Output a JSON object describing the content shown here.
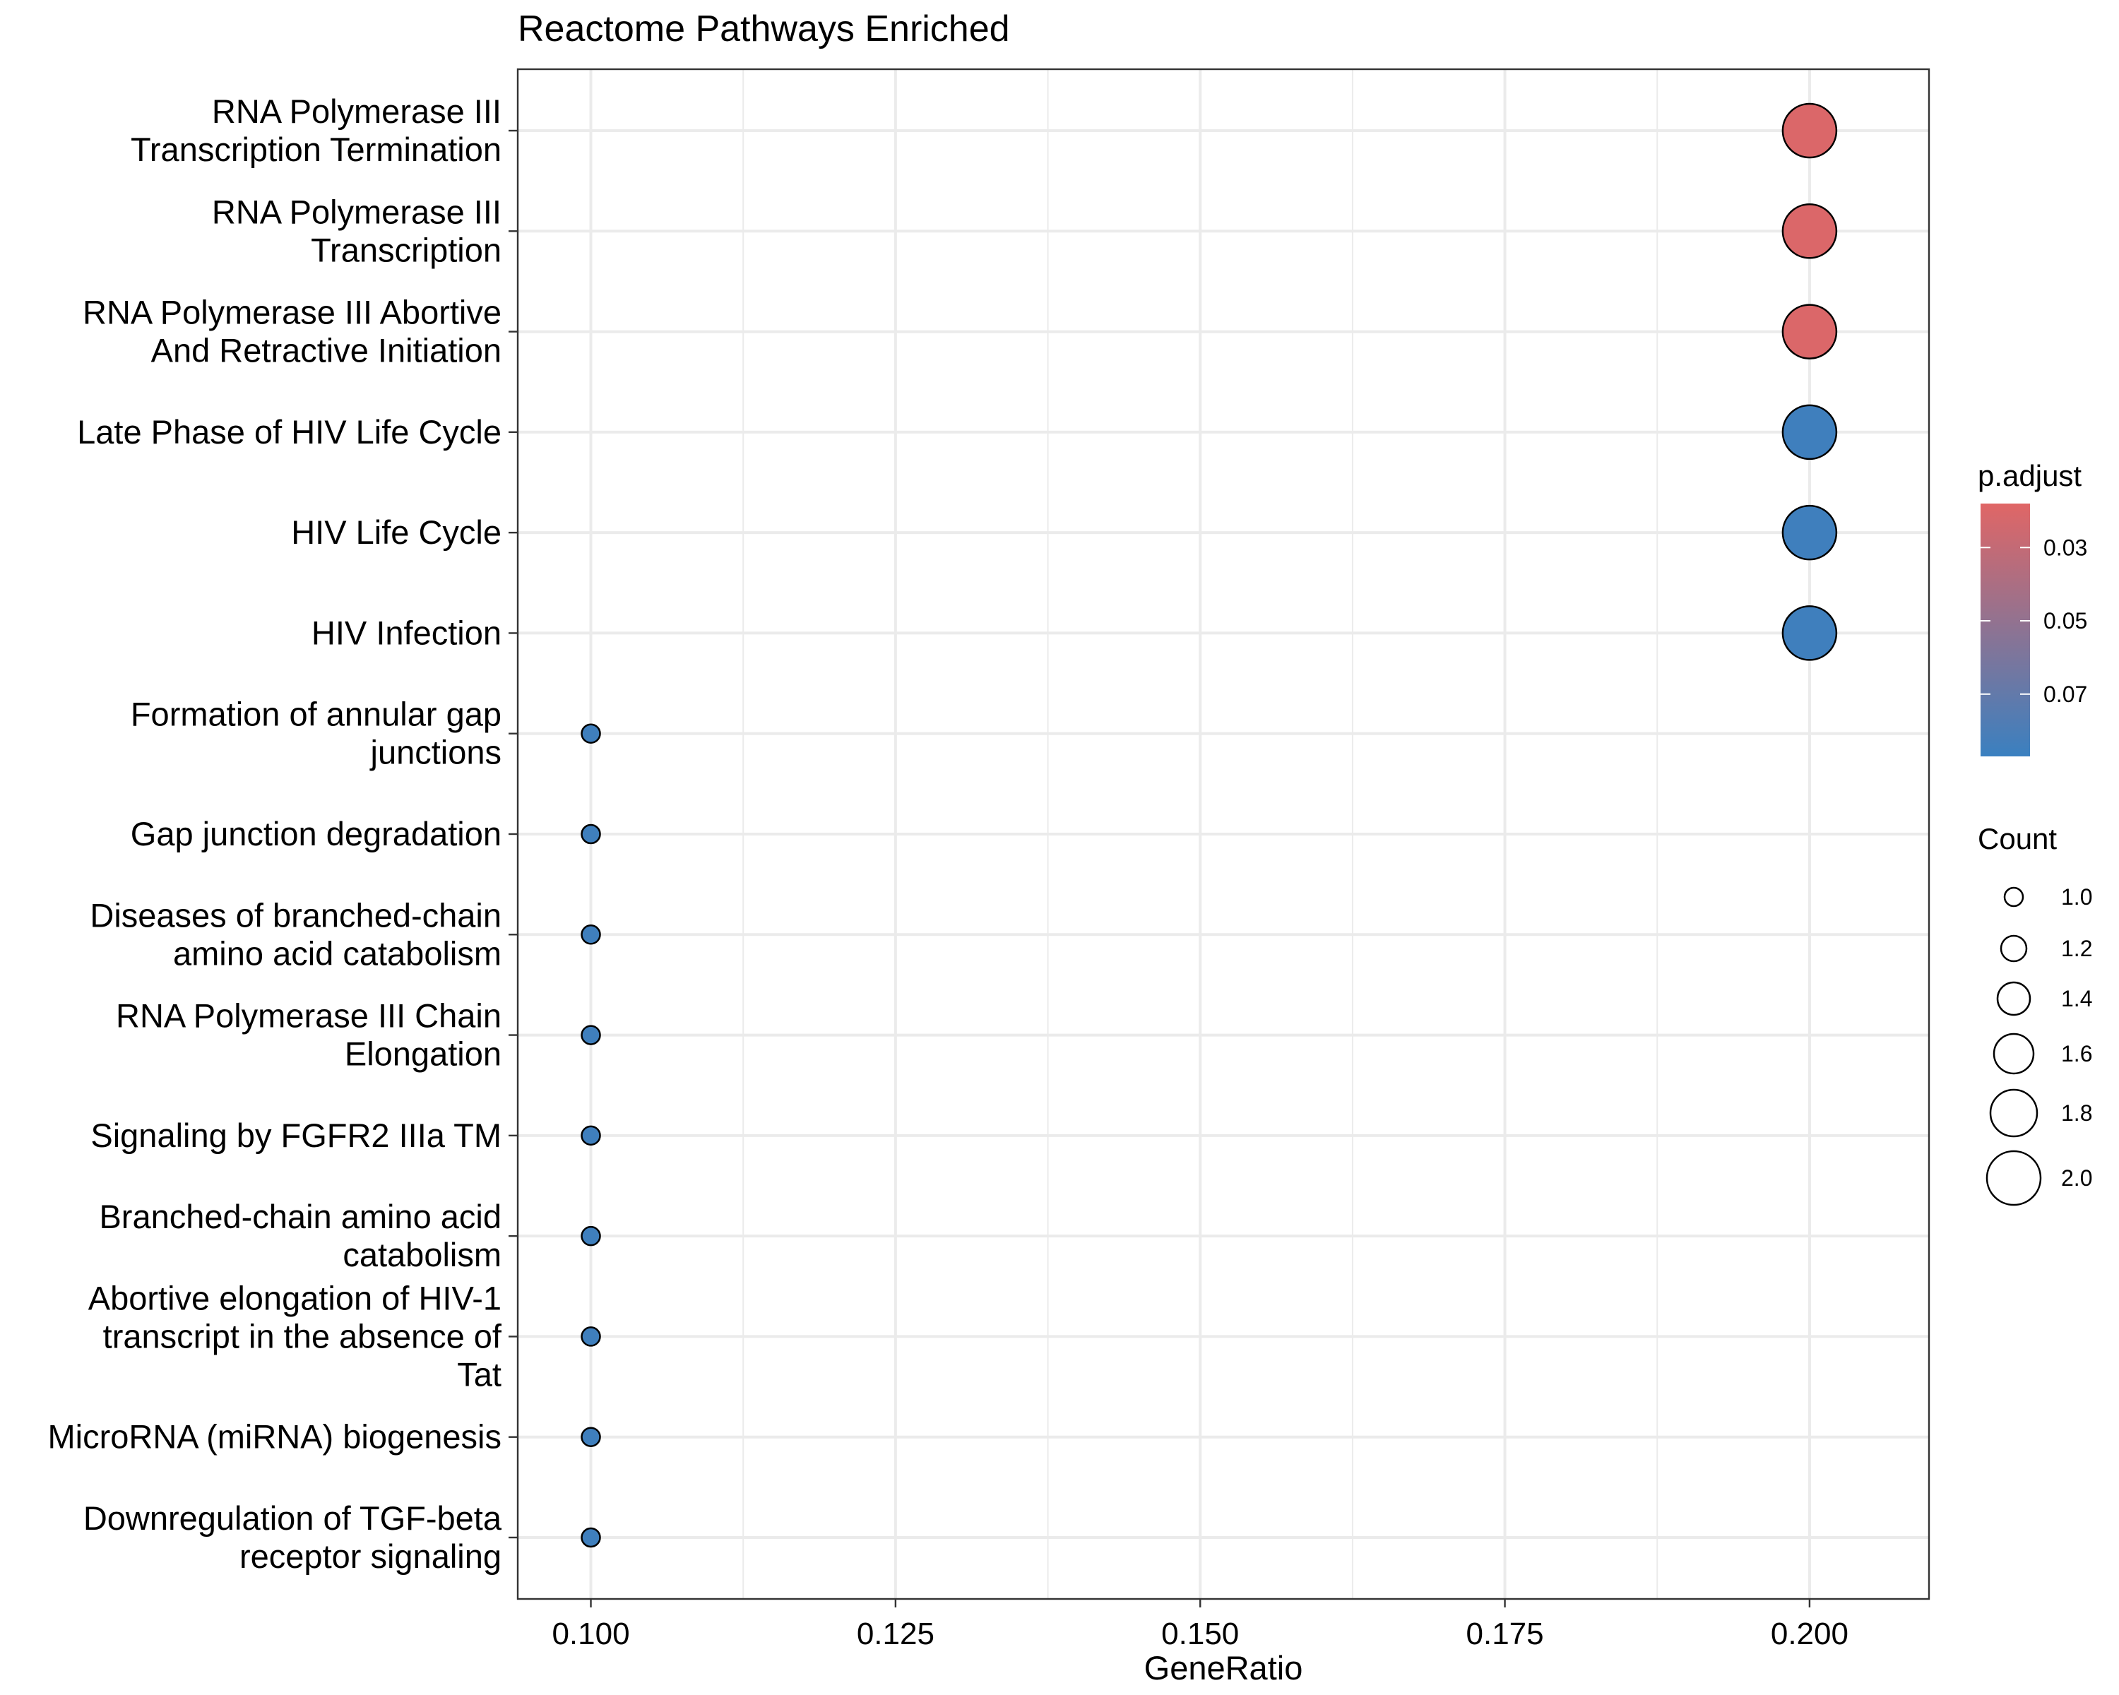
{
  "chart_data": {
    "type": "scatter",
    "title": "Reactome Pathways Enriched",
    "xlabel": "GeneRatio",
    "ylabel": "",
    "xlim": [
      0.094,
      0.2098
    ],
    "xticks": [
      "0.100",
      "0.125",
      "0.150",
      "0.175",
      "0.200"
    ],
    "grid": true,
    "categories": [
      "RNA Polymerase III\nTranscription Termination",
      "RNA Polymerase III\nTranscription",
      "RNA Polymerase III Abortive\nAnd Retractive Initiation",
      "Late Phase of HIV Life Cycle",
      "HIV Life Cycle",
      "HIV Infection",
      "Formation of annular gap\njunctions",
      "Gap junction degradation",
      "Diseases of branched-chain\namino acid catabolism",
      "RNA Polymerase III Chain\nElongation",
      "Signaling by FGFR2 IIIa TM",
      "Branched-chain amino acid\ncatabolism",
      "Abortive elongation of HIV-1\ntranscript in the absence of\nTat",
      "MicroRNA (miRNA) biogenesis",
      "Downregulation of TGF-beta\nreceptor signaling"
    ],
    "points": [
      {
        "gene_ratio": 0.2,
        "count": 2,
        "p_adjust": 0.02
      },
      {
        "gene_ratio": 0.2,
        "count": 2,
        "p_adjust": 0.02
      },
      {
        "gene_ratio": 0.2,
        "count": 2,
        "p_adjust": 0.02
      },
      {
        "gene_ratio": 0.2,
        "count": 2,
        "p_adjust": 0.085
      },
      {
        "gene_ratio": 0.2,
        "count": 2,
        "p_adjust": 0.085
      },
      {
        "gene_ratio": 0.2,
        "count": 2,
        "p_adjust": 0.085
      },
      {
        "gene_ratio": 0.1,
        "count": 1,
        "p_adjust": 0.085
      },
      {
        "gene_ratio": 0.1,
        "count": 1,
        "p_adjust": 0.085
      },
      {
        "gene_ratio": 0.1,
        "count": 1,
        "p_adjust": 0.085
      },
      {
        "gene_ratio": 0.1,
        "count": 1,
        "p_adjust": 0.085
      },
      {
        "gene_ratio": 0.1,
        "count": 1,
        "p_adjust": 0.085
      },
      {
        "gene_ratio": 0.1,
        "count": 1,
        "p_adjust": 0.085
      },
      {
        "gene_ratio": 0.1,
        "count": 1,
        "p_adjust": 0.085
      },
      {
        "gene_ratio": 0.1,
        "count": 1,
        "p_adjust": 0.085
      },
      {
        "gene_ratio": 0.1,
        "count": 1,
        "p_adjust": 0.085
      }
    ],
    "color_legend": {
      "title": "p.adjust",
      "ticks": [
        "0.03",
        "0.05",
        "0.07"
      ],
      "tick_values": [
        0.03,
        0.05,
        0.07
      ],
      "range": [
        0.018,
        0.087
      ],
      "low_color": "#e06666",
      "high_color": "#3a80c0"
    },
    "size_legend": {
      "title": "Count",
      "labels": [
        "1.0",
        "1.2",
        "1.4",
        "1.6",
        "1.8",
        "2.0"
      ],
      "values": [
        1.0,
        1.2,
        1.4,
        1.6,
        1.8,
        2.0
      ]
    },
    "legend_position": "right"
  }
}
